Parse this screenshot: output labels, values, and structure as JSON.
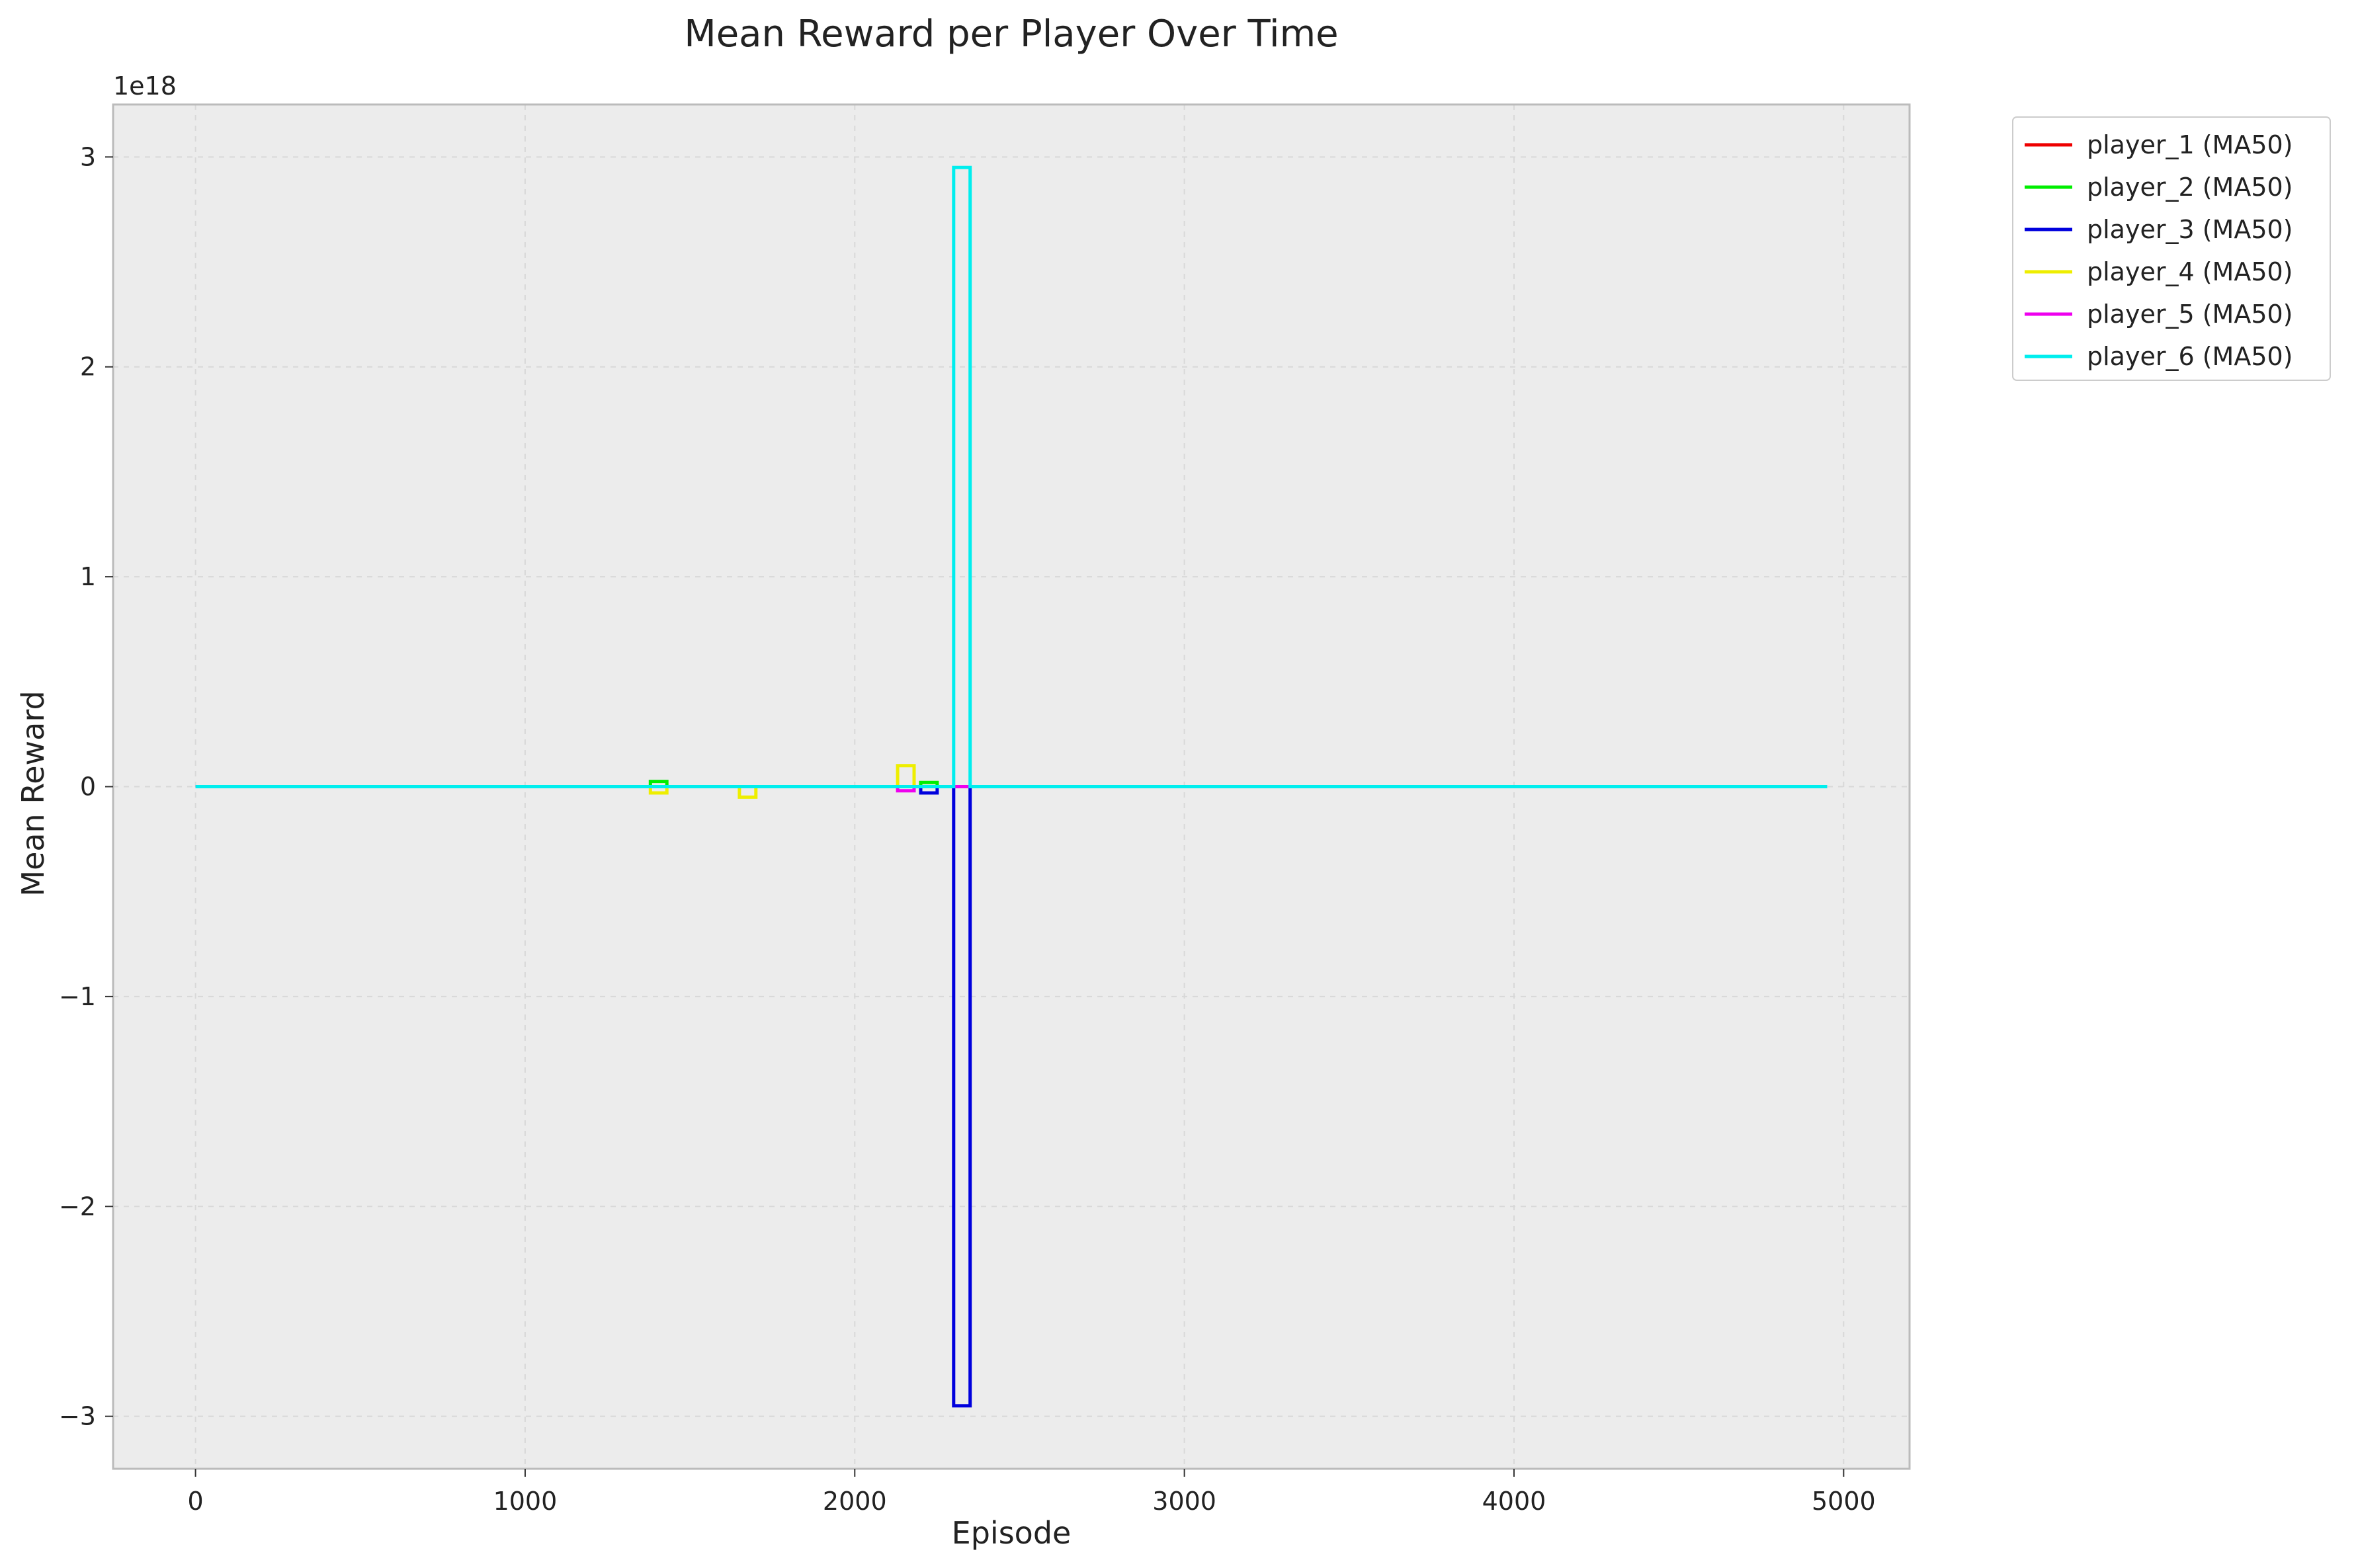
{
  "chart_data": {
    "type": "line",
    "title": "Mean Reward per Player Over Time",
    "xlabel": "Episode",
    "ylabel": "Mean Reward",
    "y_multiplier": "1e18",
    "xlim": [
      -250,
      5200
    ],
    "ylim": [
      -3.25,
      3.25
    ],
    "x_ticks": [
      0,
      1000,
      2000,
      3000,
      4000,
      5000
    ],
    "x_tick_labels": [
      "0",
      "1000",
      "2000",
      "3000",
      "4000",
      "5000"
    ],
    "y_ticks": [
      -3,
      -2,
      -1,
      0,
      1,
      2,
      3
    ],
    "y_tick_labels": [
      "−3",
      "−2",
      "−1",
      "0",
      "1",
      "2",
      "3"
    ],
    "grid": true,
    "legend_position": "outside-upper-right",
    "background_color": "#ececec",
    "series": [
      {
        "name": "player_1 (MA50)",
        "color": "#ee0000",
        "points": [
          [
            0,
            0
          ],
          [
            4950,
            0
          ]
        ]
      },
      {
        "name": "player_2 (MA50)",
        "color": "#00ee00",
        "points": [
          [
            0,
            0
          ],
          [
            1380,
            0
          ],
          [
            1380,
            0.025
          ],
          [
            1430,
            0.025
          ],
          [
            1430,
            0
          ],
          [
            2200,
            0
          ],
          [
            2200,
            0.02
          ],
          [
            2250,
            0.02
          ],
          [
            2250,
            0
          ],
          [
            4950,
            0
          ]
        ]
      },
      {
        "name": "player_3 (MA50)",
        "color": "#0000dd",
        "points": [
          [
            0,
            0
          ],
          [
            2200,
            0
          ],
          [
            2200,
            -0.03
          ],
          [
            2250,
            -0.03
          ],
          [
            2250,
            0
          ],
          [
            2300,
            0
          ],
          [
            2300,
            -2.95
          ],
          [
            2350,
            -2.95
          ],
          [
            2350,
            0
          ],
          [
            4950,
            0
          ]
        ]
      },
      {
        "name": "player_4 (MA50)",
        "color": "#eeee00",
        "points": [
          [
            0,
            0
          ],
          [
            1380,
            0
          ],
          [
            1380,
            -0.03
          ],
          [
            1430,
            -0.03
          ],
          [
            1430,
            0
          ],
          [
            1650,
            0
          ],
          [
            1650,
            -0.05
          ],
          [
            1700,
            -0.05
          ],
          [
            1700,
            0
          ],
          [
            2130,
            0
          ],
          [
            2130,
            0.1
          ],
          [
            2180,
            0.1
          ],
          [
            2180,
            0
          ],
          [
            4950,
            0
          ]
        ]
      },
      {
        "name": "player_5 (MA50)",
        "color": "#ee00ee",
        "points": [
          [
            0,
            0
          ],
          [
            2130,
            0
          ],
          [
            2130,
            -0.02
          ],
          [
            2180,
            -0.02
          ],
          [
            2180,
            0
          ],
          [
            4950,
            0
          ]
        ]
      },
      {
        "name": "player_6 (MA50)",
        "color": "#00eeee",
        "points": [
          [
            0,
            0
          ],
          [
            2300,
            0
          ],
          [
            2300,
            2.95
          ],
          [
            2350,
            2.95
          ],
          [
            2350,
            0
          ],
          [
            4950,
            0
          ]
        ]
      }
    ]
  }
}
